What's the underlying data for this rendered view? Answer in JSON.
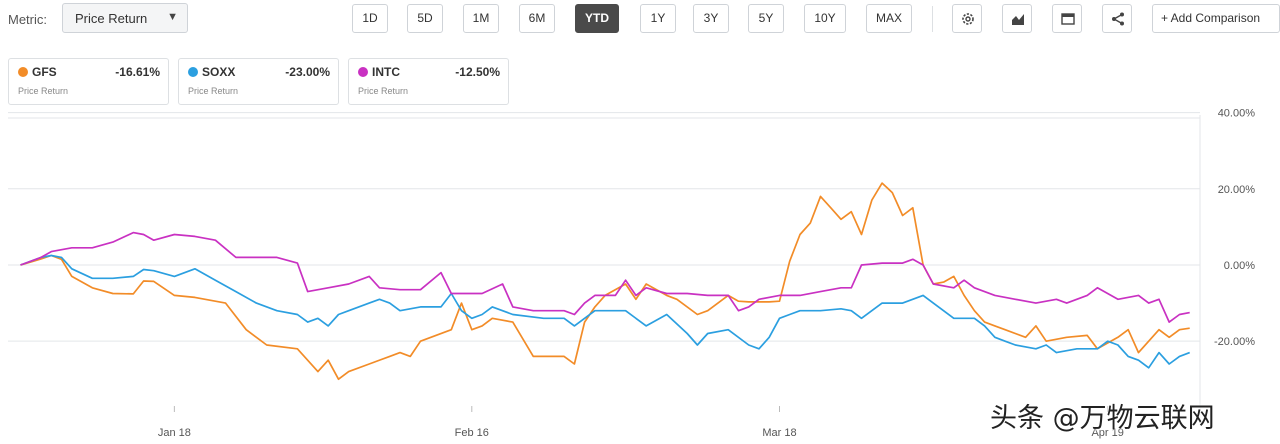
{
  "toolbar": {
    "metric_label": "Metric:",
    "metric_value": "Price Return",
    "ranges": [
      {
        "label": "1D",
        "active": false
      },
      {
        "label": "5D",
        "active": false
      },
      {
        "label": "1M",
        "active": false
      },
      {
        "label": "6M",
        "active": false
      },
      {
        "label": "YTD",
        "active": true
      },
      {
        "label": "1Y",
        "active": false
      },
      {
        "label": "3Y",
        "active": false
      },
      {
        "label": "5Y",
        "active": false
      },
      {
        "label": "10Y",
        "active": false
      },
      {
        "label": "MAX",
        "active": false
      }
    ],
    "tools": [
      "gear-icon",
      "chart-type-icon",
      "table-icon",
      "share-icon"
    ],
    "add_comparison": "+ Add Comparison"
  },
  "legend": [
    {
      "ticker": "GFS",
      "value": "-16.61%",
      "sub": "Price Return",
      "color": "#f28c28"
    },
    {
      "ticker": "SOXX",
      "value": "-23.00%",
      "sub": "Price Return",
      "color": "#2b9fe0"
    },
    {
      "ticker": "INTC",
      "value": "-12.50%",
      "sub": "Price Return",
      "color": "#c931c2"
    }
  ],
  "watermark": "头条 @万物云联网",
  "chart_data": {
    "type": "line",
    "x_range": [
      "2022-01-01",
      "2022-04-28"
    ],
    "x_ticks": [
      {
        "label": "Jan 18",
        "date": "2022-01-18"
      },
      {
        "label": "Feb 16",
        "date": "2022-02-16"
      },
      {
        "label": "Mar 18",
        "date": "2022-03-18"
      },
      {
        "label": "Apr 19",
        "date": "2022-04-19"
      }
    ],
    "y_ticks": [
      {
        "label": "40.00%",
        "value": 40
      },
      {
        "label": "20.00%",
        "value": 20
      },
      {
        "label": "0.00%",
        "value": 0
      },
      {
        "label": "-20.00%",
        "value": -20
      }
    ],
    "ylim": [
      -47,
      42
    ],
    "grid": true,
    "series": [
      {
        "name": "GFS",
        "color": "#f28c28",
        "points": [
          [
            "2022-01-03",
            0
          ],
          [
            "2022-01-05",
            1.6
          ],
          [
            "2022-01-06",
            2.5
          ],
          [
            "2022-01-07",
            1.5
          ],
          [
            "2022-01-08",
            -3
          ],
          [
            "2022-01-10",
            -6
          ],
          [
            "2022-01-12",
            -7.5
          ],
          [
            "2022-01-14",
            -7.6
          ],
          [
            "2022-01-15",
            -4.2
          ],
          [
            "2022-01-16",
            -4.3
          ],
          [
            "2022-01-18",
            -8
          ],
          [
            "2022-01-20",
            -8.5
          ],
          [
            "2022-01-23",
            -10
          ],
          [
            "2022-01-25",
            -17
          ],
          [
            "2022-01-27",
            -21
          ],
          [
            "2022-01-30",
            -22
          ],
          [
            "2022-02-01",
            -28
          ],
          [
            "2022-02-02",
            -25
          ],
          [
            "2022-02-03",
            -30
          ],
          [
            "2022-02-04",
            -28
          ],
          [
            "2022-02-06",
            -26
          ],
          [
            "2022-02-08",
            -24
          ],
          [
            "2022-02-09",
            -23
          ],
          [
            "2022-02-10",
            -24
          ],
          [
            "2022-02-11",
            -20
          ],
          [
            "2022-02-14",
            -17
          ],
          [
            "2022-02-15",
            -10
          ],
          [
            "2022-02-16",
            -17
          ],
          [
            "2022-02-17",
            -16
          ],
          [
            "2022-02-18",
            -14
          ],
          [
            "2022-02-20",
            -15
          ],
          [
            "2022-02-22",
            -24
          ],
          [
            "2022-02-23",
            -24
          ],
          [
            "2022-02-25",
            -24
          ],
          [
            "2022-02-26",
            -26
          ],
          [
            "2022-02-27",
            -15
          ],
          [
            "2022-02-28",
            -11
          ],
          [
            "2022-03-01",
            -8
          ],
          [
            "2022-03-03",
            -5
          ],
          [
            "2022-03-04",
            -9
          ],
          [
            "2022-03-05",
            -5
          ],
          [
            "2022-03-07",
            -8
          ],
          [
            "2022-03-08",
            -9
          ],
          [
            "2022-03-10",
            -13
          ],
          [
            "2022-03-11",
            -12
          ],
          [
            "2022-03-13",
            -8
          ],
          [
            "2022-03-14",
            -9.5
          ],
          [
            "2022-03-15",
            -9.7
          ],
          [
            "2022-03-17",
            -9.7
          ],
          [
            "2022-03-18",
            -9.5
          ],
          [
            "2022-03-19",
            1
          ],
          [
            "2022-03-20",
            8
          ],
          [
            "2022-03-21",
            11
          ],
          [
            "2022-03-22",
            18
          ],
          [
            "2022-03-23",
            15
          ],
          [
            "2022-03-24",
            12
          ],
          [
            "2022-03-25",
            14
          ],
          [
            "2022-03-26",
            8
          ],
          [
            "2022-03-27",
            17
          ],
          [
            "2022-03-28",
            21.5
          ],
          [
            "2022-03-29",
            19
          ],
          [
            "2022-03-30",
            13
          ],
          [
            "2022-03-31",
            15
          ],
          [
            "2022-04-01",
            0
          ],
          [
            "2022-04-02",
            -5
          ],
          [
            "2022-04-03",
            -4.5
          ],
          [
            "2022-04-04",
            -3
          ],
          [
            "2022-04-05",
            -8
          ],
          [
            "2022-04-06",
            -12
          ],
          [
            "2022-04-07",
            -15
          ],
          [
            "2022-04-08",
            -16
          ],
          [
            "2022-04-09",
            -17
          ],
          [
            "2022-04-11",
            -19
          ],
          [
            "2022-04-12",
            -16
          ],
          [
            "2022-04-13",
            -20
          ],
          [
            "2022-04-15",
            -19
          ],
          [
            "2022-04-17",
            -18.5
          ],
          [
            "2022-04-18",
            -22
          ],
          [
            "2022-04-20",
            -19
          ],
          [
            "2022-04-21",
            -17
          ],
          [
            "2022-04-22",
            -23
          ],
          [
            "2022-04-23",
            -20
          ],
          [
            "2022-04-24",
            -17
          ],
          [
            "2022-04-25",
            -19
          ],
          [
            "2022-04-26",
            -17
          ],
          [
            "2022-04-27",
            -16.61
          ]
        ]
      },
      {
        "name": "SOXX",
        "color": "#2b9fe0",
        "points": [
          [
            "2022-01-03",
            0
          ],
          [
            "2022-01-05",
            2
          ],
          [
            "2022-01-06",
            2.5
          ],
          [
            "2022-01-07",
            2
          ],
          [
            "2022-01-08",
            -1
          ],
          [
            "2022-01-10",
            -3.5
          ],
          [
            "2022-01-12",
            -3.5
          ],
          [
            "2022-01-14",
            -3
          ],
          [
            "2022-01-15",
            -1.2
          ],
          [
            "2022-01-16",
            -1.5
          ],
          [
            "2022-01-18",
            -3
          ],
          [
            "2022-01-20",
            -1
          ],
          [
            "2022-01-22",
            -4
          ],
          [
            "2022-01-24",
            -7
          ],
          [
            "2022-01-26",
            -10
          ],
          [
            "2022-01-28",
            -12
          ],
          [
            "2022-01-30",
            -13
          ],
          [
            "2022-01-31",
            -15
          ],
          [
            "2022-02-01",
            -14
          ],
          [
            "2022-02-02",
            -16
          ],
          [
            "2022-02-03",
            -13
          ],
          [
            "2022-02-04",
            -12
          ],
          [
            "2022-02-06",
            -10
          ],
          [
            "2022-02-07",
            -9
          ],
          [
            "2022-02-08",
            -10
          ],
          [
            "2022-02-09",
            -12
          ],
          [
            "2022-02-11",
            -11
          ],
          [
            "2022-02-13",
            -11
          ],
          [
            "2022-02-14",
            -7.5
          ],
          [
            "2022-02-15",
            -12
          ],
          [
            "2022-02-16",
            -14
          ],
          [
            "2022-02-17",
            -13
          ],
          [
            "2022-02-18",
            -11
          ],
          [
            "2022-02-20",
            -13
          ],
          [
            "2022-02-23",
            -14
          ],
          [
            "2022-02-25",
            -14
          ],
          [
            "2022-02-26",
            -16
          ],
          [
            "2022-02-28",
            -12
          ],
          [
            "2022-03-01",
            -12
          ],
          [
            "2022-03-03",
            -12
          ],
          [
            "2022-03-05",
            -16
          ],
          [
            "2022-03-07",
            -13
          ],
          [
            "2022-03-09",
            -18
          ],
          [
            "2022-03-10",
            -21
          ],
          [
            "2022-03-11",
            -18
          ],
          [
            "2022-03-13",
            -17
          ],
          [
            "2022-03-15",
            -21
          ],
          [
            "2022-03-16",
            -22
          ],
          [
            "2022-03-17",
            -19
          ],
          [
            "2022-03-18",
            -14
          ],
          [
            "2022-03-19",
            -13
          ],
          [
            "2022-03-20",
            -12
          ],
          [
            "2022-03-22",
            -12
          ],
          [
            "2022-03-24",
            -11.5
          ],
          [
            "2022-03-25",
            -12
          ],
          [
            "2022-03-26",
            -14
          ],
          [
            "2022-03-28",
            -10
          ],
          [
            "2022-03-30",
            -10
          ],
          [
            "2022-04-01",
            -8
          ],
          [
            "2022-04-02",
            -10
          ],
          [
            "2022-04-04",
            -14
          ],
          [
            "2022-04-06",
            -14
          ],
          [
            "2022-04-07",
            -16
          ],
          [
            "2022-04-08",
            -19
          ],
          [
            "2022-04-09",
            -20
          ],
          [
            "2022-04-10",
            -21
          ],
          [
            "2022-04-12",
            -22
          ],
          [
            "2022-04-13",
            -21
          ],
          [
            "2022-04-14",
            -23
          ],
          [
            "2022-04-16",
            -22
          ],
          [
            "2022-04-18",
            -22
          ],
          [
            "2022-04-19",
            -20
          ],
          [
            "2022-04-20",
            -21
          ],
          [
            "2022-04-21",
            -24
          ],
          [
            "2022-04-22",
            -25
          ],
          [
            "2022-04-23",
            -27
          ],
          [
            "2022-04-24",
            -23
          ],
          [
            "2022-04-25",
            -26
          ],
          [
            "2022-04-26",
            -24
          ],
          [
            "2022-04-27",
            -23
          ]
        ]
      },
      {
        "name": "INTC",
        "color": "#c931c2",
        "points": [
          [
            "2022-01-03",
            0
          ],
          [
            "2022-01-05",
            2
          ],
          [
            "2022-01-06",
            3.5
          ],
          [
            "2022-01-07",
            4
          ],
          [
            "2022-01-08",
            4.5
          ],
          [
            "2022-01-10",
            4.5
          ],
          [
            "2022-01-12",
            6
          ],
          [
            "2022-01-14",
            8.5
          ],
          [
            "2022-01-15",
            8
          ],
          [
            "2022-01-16",
            6.5
          ],
          [
            "2022-01-18",
            8
          ],
          [
            "2022-01-20",
            7.5
          ],
          [
            "2022-01-22",
            6.5
          ],
          [
            "2022-01-24",
            2
          ],
          [
            "2022-01-26",
            2
          ],
          [
            "2022-01-28",
            2
          ],
          [
            "2022-01-30",
            0.5
          ],
          [
            "2022-01-31",
            -7
          ],
          [
            "2022-02-02",
            -6
          ],
          [
            "2022-02-04",
            -5
          ],
          [
            "2022-02-06",
            -3
          ],
          [
            "2022-02-07",
            -6
          ],
          [
            "2022-02-09",
            -6.5
          ],
          [
            "2022-02-11",
            -6.5
          ],
          [
            "2022-02-13",
            -2
          ],
          [
            "2022-02-14",
            -7.5
          ],
          [
            "2022-02-17",
            -7.5
          ],
          [
            "2022-02-19",
            -5
          ],
          [
            "2022-02-20",
            -11
          ],
          [
            "2022-02-22",
            -12
          ],
          [
            "2022-02-25",
            -12
          ],
          [
            "2022-02-26",
            -13
          ],
          [
            "2022-02-27",
            -10
          ],
          [
            "2022-02-28",
            -8
          ],
          [
            "2022-03-02",
            -8
          ],
          [
            "2022-03-03",
            -4
          ],
          [
            "2022-03-04",
            -8
          ],
          [
            "2022-03-05",
            -6
          ],
          [
            "2022-03-07",
            -7.5
          ],
          [
            "2022-03-09",
            -7.5
          ],
          [
            "2022-03-11",
            -8
          ],
          [
            "2022-03-13",
            -8
          ],
          [
            "2022-03-14",
            -12
          ],
          [
            "2022-03-15",
            -11
          ],
          [
            "2022-03-16",
            -9
          ],
          [
            "2022-03-18",
            -8
          ],
          [
            "2022-03-20",
            -8
          ],
          [
            "2022-03-22",
            -7
          ],
          [
            "2022-03-24",
            -6
          ],
          [
            "2022-03-25",
            -6
          ],
          [
            "2022-03-26",
            0
          ],
          [
            "2022-03-28",
            0.5
          ],
          [
            "2022-03-30",
            0.5
          ],
          [
            "2022-03-31",
            1.5
          ],
          [
            "2022-04-01",
            0
          ],
          [
            "2022-04-02",
            -5
          ],
          [
            "2022-04-04",
            -6
          ],
          [
            "2022-04-05",
            -4
          ],
          [
            "2022-04-06",
            -6
          ],
          [
            "2022-04-08",
            -8
          ],
          [
            "2022-04-10",
            -9
          ],
          [
            "2022-04-12",
            -10
          ],
          [
            "2022-04-14",
            -9
          ],
          [
            "2022-04-15",
            -10
          ],
          [
            "2022-04-17",
            -8
          ],
          [
            "2022-04-18",
            -6
          ],
          [
            "2022-04-20",
            -9
          ],
          [
            "2022-04-22",
            -8
          ],
          [
            "2022-04-23",
            -10
          ],
          [
            "2022-04-24",
            -9
          ],
          [
            "2022-04-25",
            -15
          ],
          [
            "2022-04-26",
            -13
          ],
          [
            "2022-04-27",
            -12.5
          ]
        ]
      }
    ]
  }
}
